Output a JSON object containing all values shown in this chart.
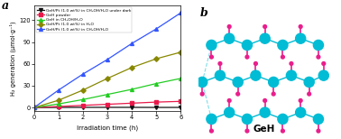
{
  "title_left": "a",
  "title_right": "b",
  "xlabel": "Irradiation time (h)",
  "ylabel": "H₂ generation (μmol·g⁻¹)",
  "xlim": [
    0,
    6
  ],
  "ylim": [
    -5,
    140
  ],
  "yticks": [
    0,
    30,
    60,
    90,
    120
  ],
  "xticks": [
    0,
    1,
    2,
    3,
    4,
    5,
    6
  ],
  "lines": [
    {
      "label": "GeH/Pt (1.0 wt%) in CH₃OH/H₂O under dark",
      "color": "#111111",
      "marker": "v",
      "x": [
        0,
        1,
        2,
        3,
        4,
        5,
        6
      ],
      "y": [
        0,
        0.2,
        0.3,
        0.3,
        0.3,
        0.2,
        0.2
      ]
    },
    {
      "label": "GeH powder",
      "color": "#e8194a",
      "marker": "s",
      "x": [
        0,
        1,
        2,
        3,
        4,
        5,
        6
      ],
      "y": [
        0,
        1.5,
        3.0,
        4.5,
        6.0,
        7.5,
        8.5
      ]
    },
    {
      "label": "GeH in CH₃OH/H₂O",
      "color": "#22cc22",
      "marker": "^",
      "x": [
        0,
        1,
        2,
        3,
        4,
        5,
        6
      ],
      "y": [
        0,
        5,
        11,
        18,
        25,
        33,
        40
      ]
    },
    {
      "label": "GeH/Pt (1.0 wt%) in H₂O",
      "color": "#888800",
      "marker": "D",
      "x": [
        0,
        1,
        2,
        3,
        4,
        5,
        6
      ],
      "y": [
        0,
        10,
        24,
        40,
        55,
        67,
        76
      ]
    },
    {
      "label": "GeH/Pt (1.0 wt%) in CH₃OH/H₂O",
      "color": "#3355ff",
      "marker": "^",
      "x": [
        0,
        1,
        2,
        3,
        4,
        5,
        6
      ],
      "y": [
        0,
        24,
        46,
        66,
        88,
        108,
        130
      ]
    }
  ],
  "fig_width": 3.78,
  "fig_height": 1.54,
  "dpi": 100,
  "bg_color": "#ffffff",
  "ge_color": "#00bcd4",
  "h_color": "#e91e8c",
  "bond_color": "#00bcd4"
}
